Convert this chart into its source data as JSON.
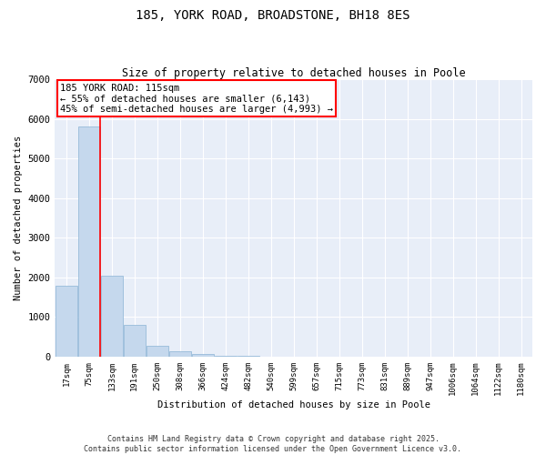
{
  "title": "185, YORK ROAD, BROADSTONE, BH18 8ES",
  "subtitle": "Size of property relative to detached houses in Poole",
  "xlabel": "Distribution of detached houses by size in Poole",
  "ylabel": "Number of detached properties",
  "bin_labels": [
    "17sqm",
    "75sqm",
    "133sqm",
    "191sqm",
    "250sqm",
    "308sqm",
    "366sqm",
    "424sqm",
    "482sqm",
    "540sqm",
    "599sqm",
    "657sqm",
    "715sqm",
    "773sqm",
    "831sqm",
    "889sqm",
    "947sqm",
    "1006sqm",
    "1064sqm",
    "1122sqm",
    "1180sqm"
  ],
  "bar_values": [
    1780,
    5800,
    2050,
    800,
    280,
    130,
    60,
    30,
    15,
    8,
    5,
    3,
    2,
    0,
    0,
    0,
    0,
    0,
    0,
    0,
    0
  ],
  "bar_color": "#c5d8ed",
  "bar_edge_color": "#8ab4d4",
  "annotation_title": "185 YORK ROAD: 115sqm",
  "annotation_line1": "← 55% of detached houses are smaller (6,143)",
  "annotation_line2": "45% of semi-detached houses are larger (4,993) →",
  "ylim": [
    0,
    7000
  ],
  "yticks": [
    0,
    1000,
    2000,
    3000,
    4000,
    5000,
    6000,
    7000
  ],
  "background_color": "#e8eef8",
  "grid_color": "#ffffff",
  "footer_line1": "Contains HM Land Registry data © Crown copyright and database right 2025.",
  "footer_line2": "Contains public sector information licensed under the Open Government Licence v3.0."
}
